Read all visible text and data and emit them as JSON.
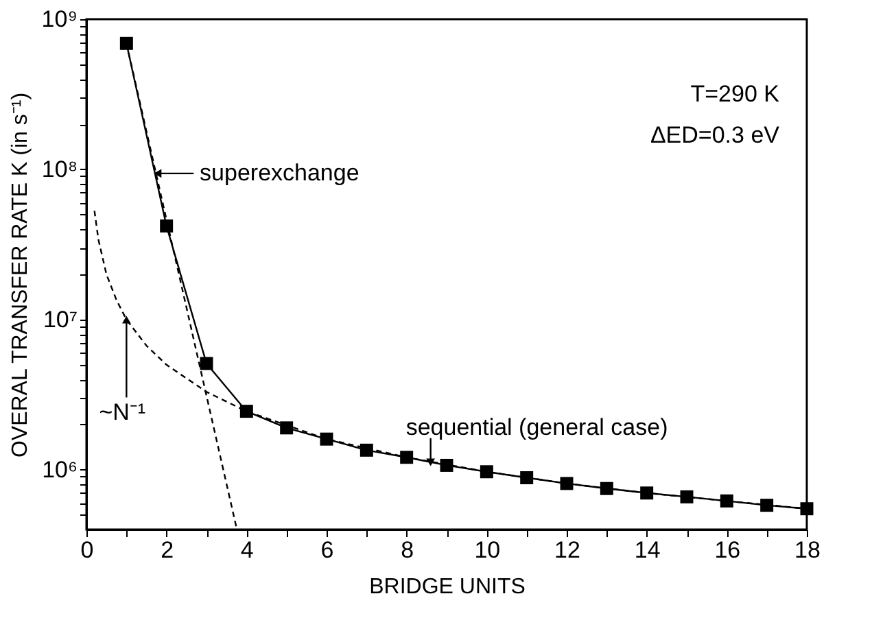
{
  "chart_data": {
    "type": "line",
    "xlabel": "BRIDGE UNITS",
    "ylabel": "OVERAL TRANSFER RATE K (in s⁻¹)",
    "xlim": [
      0,
      18
    ],
    "ylim": [
      400000,
      1000000000
    ],
    "log": true,
    "grid": false,
    "xticks": [
      0,
      {
        "value": 1,
        "label": null
      },
      2,
      {
        "value": 3,
        "label": null
      },
      4,
      {
        "value": 5,
        "label": null
      },
      6,
      {
        "value": 7,
        "label": null
      },
      8,
      {
        "value": 9,
        "label": null
      },
      10,
      {
        "value": 11,
        "label": null
      },
      12,
      {
        "value": 13,
        "label": null
      },
      14,
      {
        "value": 15,
        "label": null
      },
      16,
      {
        "value": 17,
        "label": null
      },
      18
    ],
    "yticks": [
      {
        "value": 500000,
        "label": null
      },
      {
        "value": 600000,
        "label": null
      },
      {
        "value": 700000,
        "label": null
      },
      {
        "value": 800000,
        "label": null
      },
      {
        "value": 900000,
        "label": null
      },
      {
        "value": 1000000,
        "label": "10⁶"
      },
      {
        "value": 2000000,
        "label": null
      },
      {
        "value": 3000000,
        "label": null
      },
      {
        "value": 4000000,
        "label": null
      },
      {
        "value": 5000000,
        "label": null
      },
      {
        "value": 6000000,
        "label": null
      },
      {
        "value": 7000000,
        "label": null
      },
      {
        "value": 8000000,
        "label": null
      },
      {
        "value": 9000000,
        "label": null
      },
      {
        "value": 10000000,
        "label": "10⁷"
      },
      {
        "value": 20000000,
        "label": null
      },
      {
        "value": 30000000,
        "label": null
      },
      {
        "value": 40000000,
        "label": null
      },
      {
        "value": 50000000,
        "label": null
      },
      {
        "value": 60000000,
        "label": null
      },
      {
        "value": 70000000,
        "label": null
      },
      {
        "value": 80000000,
        "label": null
      },
      {
        "value": 90000000,
        "label": null
      },
      {
        "value": 100000000,
        "label": "10⁸"
      },
      {
        "value": 200000000,
        "label": null
      },
      {
        "value": 300000000,
        "label": null
      },
      {
        "value": 400000000,
        "label": null
      },
      {
        "value": 500000000,
        "label": null
      },
      {
        "value": 600000000,
        "label": null
      },
      {
        "value": 700000000,
        "label": null
      },
      {
        "value": 800000000,
        "label": null
      },
      {
        "value": 900000000,
        "label": null
      },
      {
        "value": 1000000000,
        "label": "10⁹"
      }
    ],
    "series": [
      {
        "color": "#000000",
        "marker": "square",
        "line_style": "solid",
        "x": [
          1,
          2,
          3,
          4,
          5,
          6,
          7,
          8,
          9,
          10,
          11,
          12,
          13,
          14,
          15,
          16,
          17,
          18
        ],
        "values": [
          690000000,
          42000000,
          5100000,
          2450000,
          1900000,
          1600000,
          1350000,
          1210000,
          1070000,
          970000,
          885000,
          810000,
          750000,
          700000,
          660000,
          620000,
          580000,
          550000
        ]
      },
      {
        "color": "#000000",
        "marker": "none",
        "line_style": "dashed",
        "x": [
          1,
          3.75
        ],
        "values": [
          690000000,
          410000
        ]
      },
      {
        "color": "#000000",
        "marker": "none",
        "line_style": "dashed",
        "x": [
          0.2,
          0.3,
          0.5,
          0.75,
          1,
          1.5,
          2,
          3,
          4,
          6,
          8,
          10,
          12,
          14,
          16,
          18
        ],
        "values": [
          53000000,
          34000000,
          20000000,
          13500000,
          10000000,
          6700000,
          5000000,
          3300000,
          2450000,
          1600000,
          1210000,
          970000,
          810000,
          700000,
          620000,
          550000
        ]
      }
    ],
    "annotations": [
      {
        "text": "superexchange",
        "x": 1.78,
        "y": 94000000
      },
      {
        "text": "~N⁻¹",
        "x": 1,
        "y": 10000000
      },
      {
        "text": "sequential (general case)",
        "x": 8.6,
        "y": 1120000
      },
      "T=290 K",
      "ΔED=0.3 eV"
    ]
  }
}
